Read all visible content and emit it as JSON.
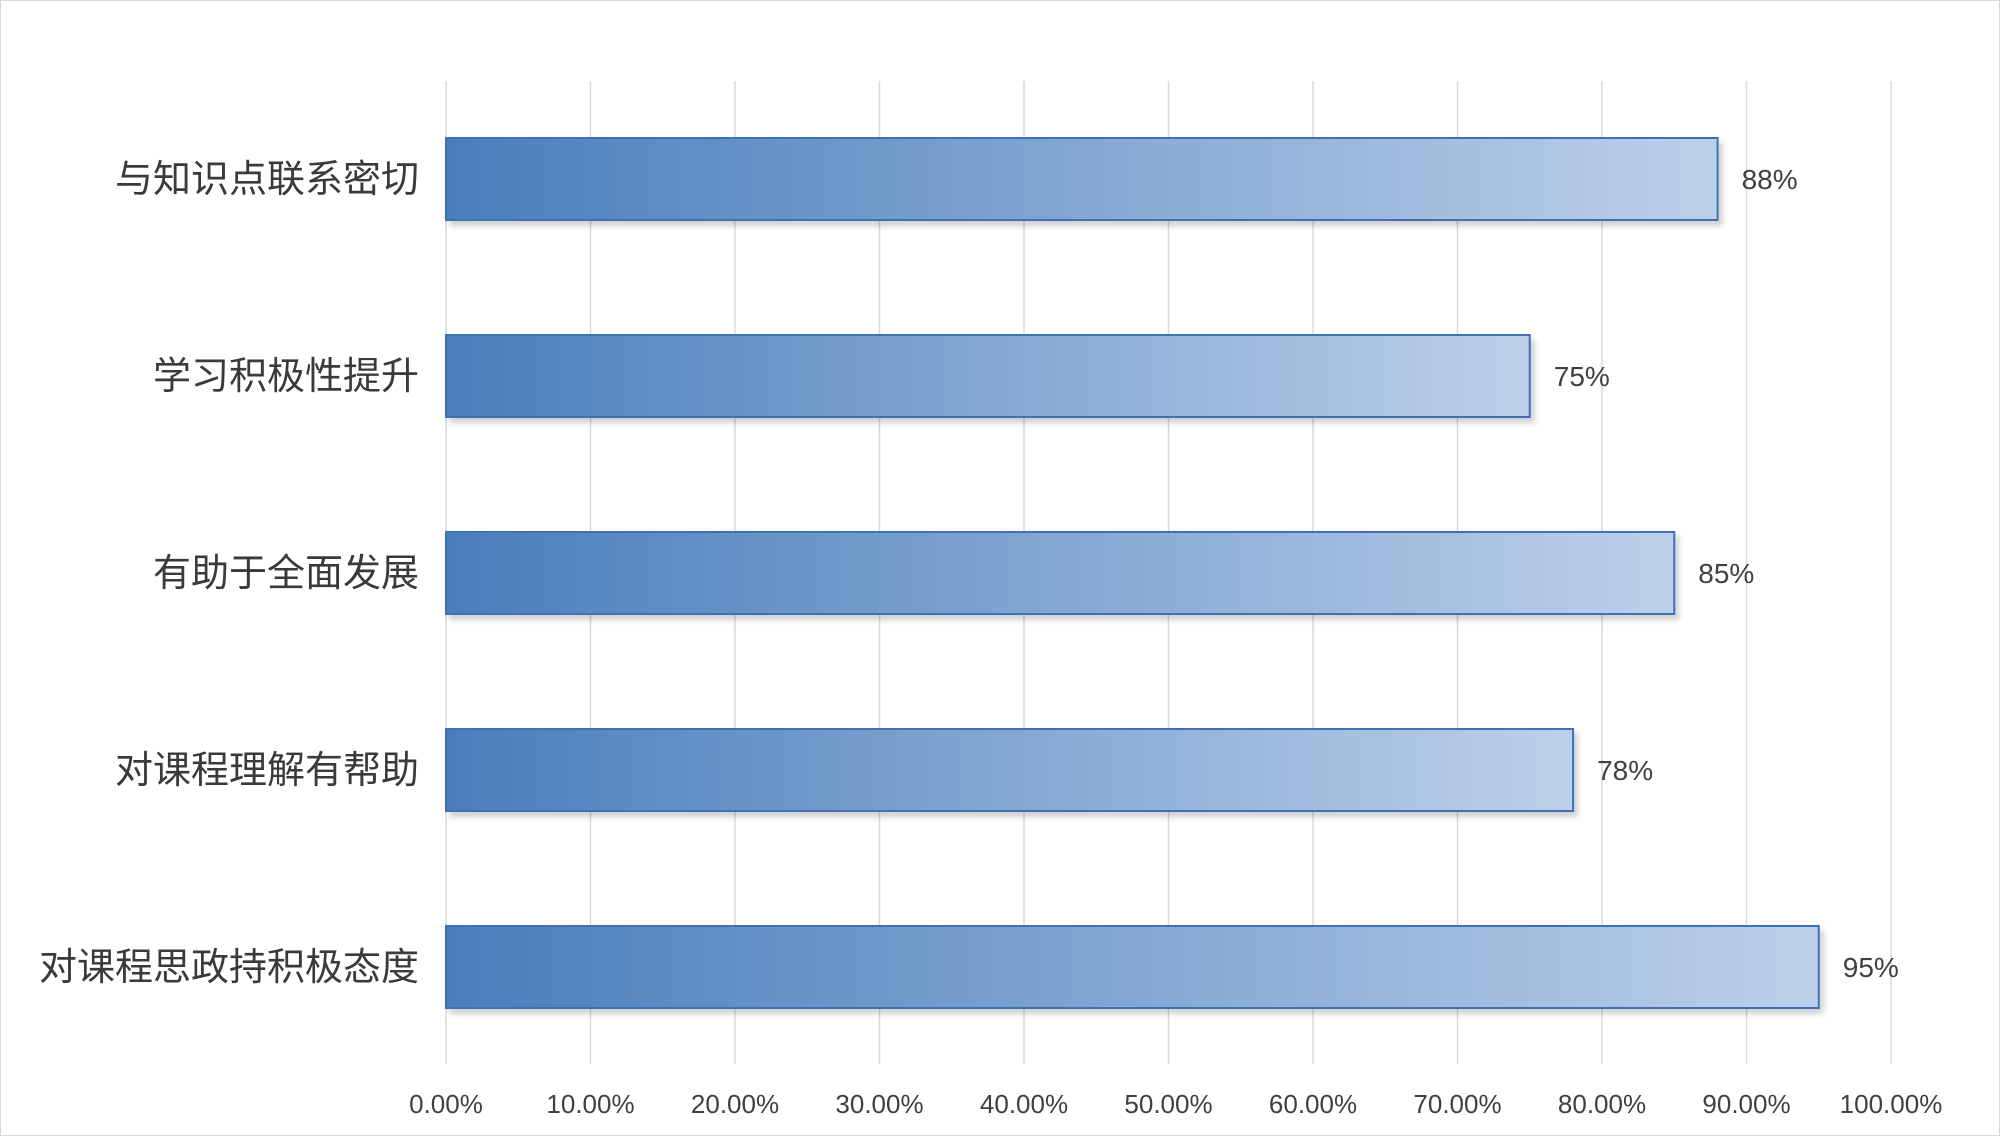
{
  "chart_data": {
    "type": "bar",
    "orientation": "horizontal",
    "title": "",
    "xlabel": "",
    "ylabel": "",
    "categories": [
      "与知识点联系密切",
      "学习积极性提升",
      "有助于全面发展",
      "对课程理解有帮助",
      "对课程思政持积极态度"
    ],
    "values": [
      88,
      75,
      85,
      78,
      95
    ],
    "data_labels": [
      "88%",
      "75%",
      "85%",
      "78%",
      "95%"
    ],
    "xlim": [
      0,
      100
    ],
    "x_ticks": [
      0,
      10,
      20,
      30,
      40,
      50,
      60,
      70,
      80,
      90,
      100
    ],
    "x_tick_labels": [
      "0.00%",
      "10.00%",
      "20.00%",
      "30.00%",
      "40.00%",
      "50.00%",
      "60.00%",
      "70.00%",
      "80.00%",
      "90.00%",
      "100.00%"
    ],
    "grid": "vertical",
    "legend": "none",
    "colors": {
      "bar_start": "#4a7ebb",
      "bar_end": "#bdd0e9",
      "bar_border": "#3f6fb5",
      "grid": "#d9d9d9"
    }
  }
}
